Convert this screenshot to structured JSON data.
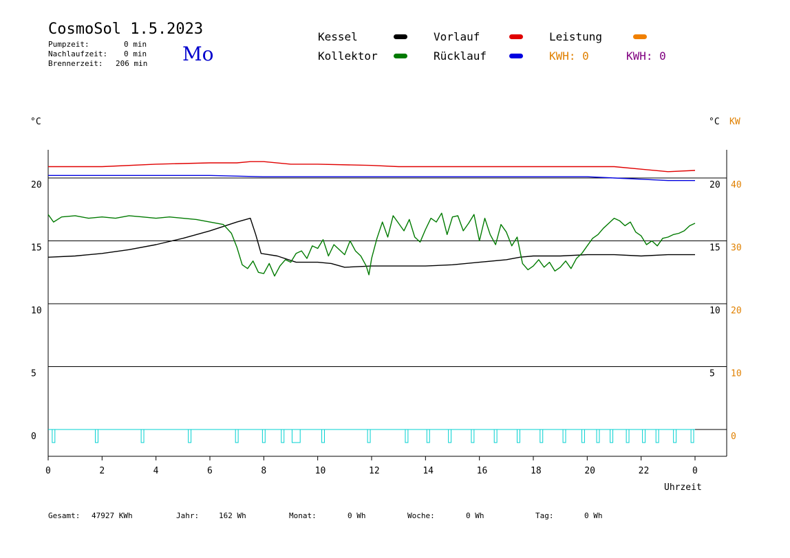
{
  "header": {
    "title": "CosmoSol 1.5.2023",
    "weekday": "Mo",
    "stats": [
      {
        "label": "Pumpzeit:",
        "value": "0 min"
      },
      {
        "label": "Nachlaufzeit:",
        "value": "0 min"
      },
      {
        "label": "Brennerzeit:",
        "value": "206 min"
      }
    ]
  },
  "legend": {
    "kessel": {
      "label": "Kessel",
      "color": "#000000"
    },
    "kollektor": {
      "label": "Kollektor",
      "color": "#007a00"
    },
    "vorlauf": {
      "label": "Vorlauf",
      "color": "#e00000"
    },
    "ruecklauf": {
      "label": "Rücklauf",
      "color": "#0000e0"
    },
    "leistung": {
      "label": "Leistung",
      "color": "#f08000"
    },
    "kwh1": {
      "label": "KWH: 0",
      "color": "#e08000"
    },
    "kwh2": {
      "label": "KWH: 0",
      "color": "#800080"
    }
  },
  "axes": {
    "left_unit": "°C",
    "right_unit": "°C",
    "right_unit2": "KW",
    "xlabel": "Uhrzeit"
  },
  "footer": [
    {
      "label": "Gesamt:",
      "value": "47927 KWh"
    },
    {
      "label": "Jahr:",
      "value": "162 Wh"
    },
    {
      "label": "Monat:",
      "value": "0 Wh"
    },
    {
      "label": "Woche:",
      "value": "0 Wh"
    },
    {
      "label": "Tag:",
      "value": "0 Wh"
    }
  ],
  "chart_data": {
    "type": "line",
    "x_ticks": [
      "0",
      "2",
      "4",
      "6",
      "8",
      "10",
      "12",
      "14",
      "16",
      "18",
      "20",
      "22",
      "0"
    ],
    "y_left_ticks": [
      "0",
      "5",
      "10",
      "15",
      "20"
    ],
    "y_right_ticks": [
      "5",
      "10",
      "15",
      "20"
    ],
    "y_kw_ticks": [
      "0",
      "10",
      "20",
      "30",
      "40"
    ],
    "xlim": [
      0,
      24
    ],
    "ylim": [
      -2,
      23
    ],
    "grid_y": [
      0,
      5,
      10,
      15,
      20
    ],
    "series": [
      {
        "name": "Vorlauf",
        "color": "#e00000",
        "x": [
          0,
          2,
          4,
          6,
          7,
          7.5,
          8,
          9,
          10,
          12,
          13,
          14,
          16,
          18,
          20,
          21,
          22,
          23,
          24
        ],
        "y": [
          20.9,
          20.9,
          21.1,
          21.2,
          21.2,
          21.3,
          21.3,
          21.1,
          21.1,
          21.0,
          20.9,
          20.9,
          20.9,
          20.9,
          20.9,
          20.9,
          20.7,
          20.5,
          20.6
        ]
      },
      {
        "name": "Rücklauf",
        "color": "#0000e0",
        "x": [
          0,
          2,
          4,
          6,
          8,
          10,
          12,
          14,
          16,
          18,
          20,
          21,
          22,
          23,
          24
        ],
        "y": [
          20.2,
          20.2,
          20.2,
          20.2,
          20.1,
          20.1,
          20.1,
          20.1,
          20.1,
          20.1,
          20.1,
          20.0,
          19.9,
          19.8,
          19.8
        ]
      },
      {
        "name": "Kessel",
        "color": "#000000",
        "x": [
          0,
          1,
          2,
          3,
          4,
          5,
          6,
          7,
          7.5,
          7.7,
          7.9,
          8.5,
          9.2,
          10,
          10.5,
          11,
          12,
          13,
          14,
          15,
          16,
          17,
          17.5,
          18,
          19,
          20,
          21,
          22,
          23,
          24
        ],
        "y": [
          13.7,
          13.8,
          14.0,
          14.3,
          14.7,
          15.2,
          15.8,
          16.5,
          16.8,
          15.5,
          14.0,
          13.8,
          13.3,
          13.3,
          13.2,
          12.9,
          13.0,
          13.0,
          13.0,
          13.1,
          13.3,
          13.5,
          13.7,
          13.8,
          13.8,
          13.9,
          13.9,
          13.8,
          13.9,
          13.9
        ]
      },
      {
        "name": "Kollektor",
        "color": "#007a00",
        "x": [
          0,
          0.2,
          0.5,
          1,
          1.5,
          2,
          2.5,
          3,
          3.5,
          4,
          4.5,
          5,
          5.5,
          6,
          6.5,
          6.8,
          7.0,
          7.2,
          7.4,
          7.6,
          7.8,
          8.0,
          8.2,
          8.4,
          8.6,
          8.8,
          9.0,
          9.2,
          9.4,
          9.6,
          9.8,
          10.0,
          10.2,
          10.4,
          10.6,
          10.8,
          11.0,
          11.2,
          11.4,
          11.6,
          11.8,
          11.9,
          12.0,
          12.2,
          12.4,
          12.6,
          12.8,
          13.0,
          13.2,
          13.4,
          13.6,
          13.8,
          14.0,
          14.2,
          14.4,
          14.6,
          14.8,
          15.0,
          15.2,
          15.4,
          15.6,
          15.8,
          16.0,
          16.2,
          16.4,
          16.6,
          16.8,
          17.0,
          17.2,
          17.4,
          17.6,
          17.8,
          18.0,
          18.2,
          18.4,
          18.6,
          18.8,
          19.0,
          19.2,
          19.4,
          19.6,
          19.8,
          20.0,
          20.2,
          20.4,
          20.6,
          20.8,
          21.0,
          21.2,
          21.4,
          21.6,
          21.8,
          22.0,
          22.2,
          22.4,
          22.6,
          22.8,
          23.0,
          23.2,
          23.4,
          23.6,
          23.8,
          24.0
        ],
        "y": [
          17.1,
          16.5,
          16.9,
          17.0,
          16.8,
          16.9,
          16.8,
          17.0,
          16.9,
          16.8,
          16.9,
          16.8,
          16.7,
          16.5,
          16.3,
          15.6,
          14.5,
          13.1,
          12.8,
          13.4,
          12.5,
          12.4,
          13.2,
          12.2,
          13.0,
          13.5,
          13.3,
          14.0,
          14.2,
          13.6,
          14.6,
          14.4,
          15.1,
          13.8,
          14.7,
          14.3,
          13.9,
          15.0,
          14.2,
          13.8,
          13.0,
          12.3,
          13.6,
          15.2,
          16.5,
          15.3,
          17.0,
          16.4,
          15.8,
          16.7,
          15.3,
          14.9,
          15.9,
          16.8,
          16.5,
          17.2,
          15.5,
          16.9,
          17.0,
          15.8,
          16.4,
          17.1,
          15.0,
          16.8,
          15.5,
          14.7,
          16.3,
          15.7,
          14.6,
          15.3,
          13.2,
          12.7,
          13.0,
          13.5,
          12.9,
          13.3,
          12.6,
          12.9,
          13.4,
          12.8,
          13.6,
          14.0,
          14.6,
          15.2,
          15.5,
          16.0,
          16.4,
          16.8,
          16.6,
          16.2,
          16.5,
          15.7,
          15.4,
          14.7,
          15.0,
          14.6,
          15.2,
          15.3,
          15.5,
          15.6,
          15.8,
          16.2,
          16.4
        ]
      },
      {
        "name": "Leistung",
        "color": "#00d0d0",
        "pulses": [
          [
            0.15,
            0.25
          ],
          [
            1.75,
            1.85
          ],
          [
            3.45,
            3.55
          ],
          [
            5.2,
            5.3
          ],
          [
            6.95,
            7.05
          ],
          [
            7.95,
            8.05
          ],
          [
            8.65,
            8.75
          ],
          [
            9.05,
            9.35
          ],
          [
            10.15,
            10.25
          ],
          [
            11.85,
            11.95
          ],
          [
            13.25,
            13.35
          ],
          [
            14.05,
            14.15
          ],
          [
            14.85,
            14.95
          ],
          [
            15.7,
            15.8
          ],
          [
            16.55,
            16.65
          ],
          [
            17.4,
            17.5
          ],
          [
            18.25,
            18.35
          ],
          [
            19.1,
            19.2
          ],
          [
            19.8,
            19.9
          ],
          [
            20.35,
            20.45
          ],
          [
            20.85,
            20.95
          ],
          [
            21.45,
            21.55
          ],
          [
            22.05,
            22.15
          ],
          [
            22.55,
            22.65
          ],
          [
            23.2,
            23.3
          ],
          [
            23.85,
            23.95
          ]
        ]
      }
    ]
  }
}
